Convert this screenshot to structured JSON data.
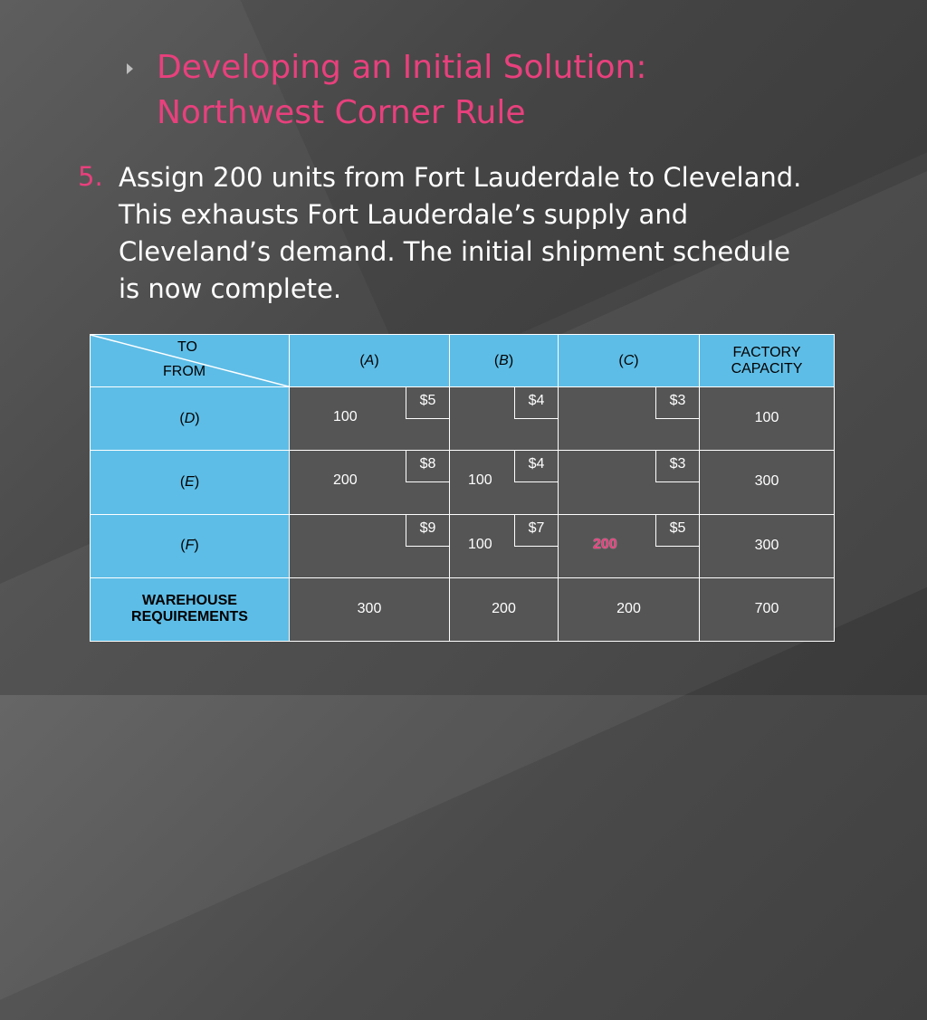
{
  "slide": {
    "title_line1": "Developing an Initial Solution:",
    "title_line2": "Northwest Corner Rule",
    "item_number": "5.",
    "item_text": "Assign 200 units from Fort Lauderdale to Cleveland. This exhausts Fort Lauderdale’s supply and Cleveland’s demand. The initial shipment schedule is now complete."
  },
  "table": {
    "header": {
      "to": "TO",
      "from": "FROM",
      "cols": [
        {
          "open": "(",
          "letter": "A",
          "close": ")"
        },
        {
          "open": "(",
          "letter": "B",
          "close": ")"
        },
        {
          "open": "(",
          "letter": "C",
          "close": ")"
        }
      ],
      "capacity_line1": "FACTORY",
      "capacity_line2": "CAPACITY"
    },
    "rows": [
      {
        "label": {
          "open": "(",
          "letter": "D",
          "close": ")"
        },
        "cells": [
          {
            "cost": "$5",
            "alloc": "100"
          },
          {
            "cost": "$4",
            "alloc": ""
          },
          {
            "cost": "$3",
            "alloc": ""
          }
        ],
        "capacity": "100"
      },
      {
        "label": {
          "open": "(",
          "letter": "E",
          "close": ")"
        },
        "cells": [
          {
            "cost": "$8",
            "alloc": "200"
          },
          {
            "cost": "$4",
            "alloc": "100"
          },
          {
            "cost": "$3",
            "alloc": ""
          }
        ],
        "capacity": "300"
      },
      {
        "label": {
          "open": "(",
          "letter": "F",
          "close": ")"
        },
        "cells": [
          {
            "cost": "$9",
            "alloc": ""
          },
          {
            "cost": "$7",
            "alloc": "100"
          },
          {
            "cost": "$5",
            "alloc": "200"
          }
        ],
        "capacity": "300"
      }
    ],
    "footer": {
      "label_line1": "WAREHOUSE",
      "label_line2": "REQUIREMENTS",
      "values": [
        "300",
        "200",
        "200"
      ],
      "total": "700"
    }
  },
  "colors": {
    "accent_pink": "#e8407c",
    "table_blue": "#5ebde6",
    "cell_gray": "#555555"
  }
}
